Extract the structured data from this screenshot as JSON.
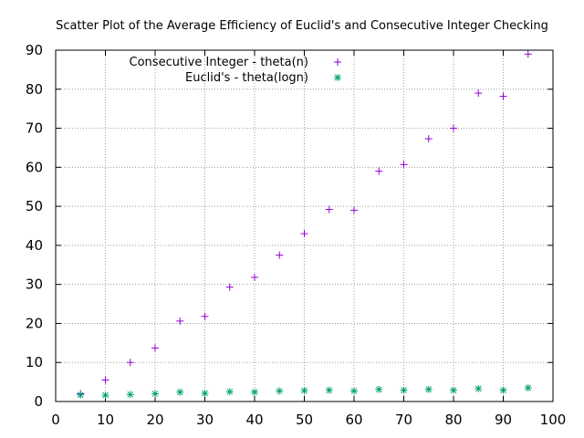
{
  "chart_data": {
    "type": "scatter",
    "title": "Scatter Plot of the Average Efficiency of Euclid's and Consecutive Integer Checking",
    "xlabel": "",
    "ylabel": "",
    "xlim": [
      0,
      100
    ],
    "ylim": [
      0,
      90
    ],
    "x_ticks": [
      0,
      10,
      20,
      30,
      40,
      50,
      60,
      70,
      80,
      90,
      100
    ],
    "y_ticks": [
      0,
      10,
      20,
      30,
      40,
      50,
      60,
      70,
      80,
      90
    ],
    "grid": true,
    "legend_position": "top-center",
    "series": [
      {
        "name": "Consecutive Integer - theta(n)",
        "marker": "plus",
        "color": "#9400d3",
        "x": [
          5,
          10,
          15,
          20,
          25,
          30,
          35,
          40,
          45,
          50,
          55,
          60,
          65,
          70,
          75,
          80,
          85,
          90,
          95
        ],
        "y": [
          2.0,
          5.5,
          10.0,
          13.7,
          20.6,
          21.8,
          29.3,
          31.8,
          37.5,
          43.0,
          49.2,
          49.0,
          59.0,
          60.7,
          67.3,
          70.0,
          79.0,
          78.2,
          89.0
        ]
      },
      {
        "name": "Euclid's - theta(logn)",
        "marker": "star",
        "color": "#009e73",
        "x": [
          5,
          10,
          15,
          20,
          25,
          30,
          35,
          40,
          45,
          50,
          55,
          60,
          65,
          70,
          75,
          80,
          85,
          90,
          95
        ],
        "y": [
          1.7,
          1.6,
          1.8,
          2.0,
          2.4,
          2.1,
          2.5,
          2.4,
          2.7,
          2.8,
          2.9,
          2.7,
          3.1,
          2.9,
          3.1,
          2.9,
          3.3,
          2.9,
          3.5
        ]
      }
    ]
  }
}
